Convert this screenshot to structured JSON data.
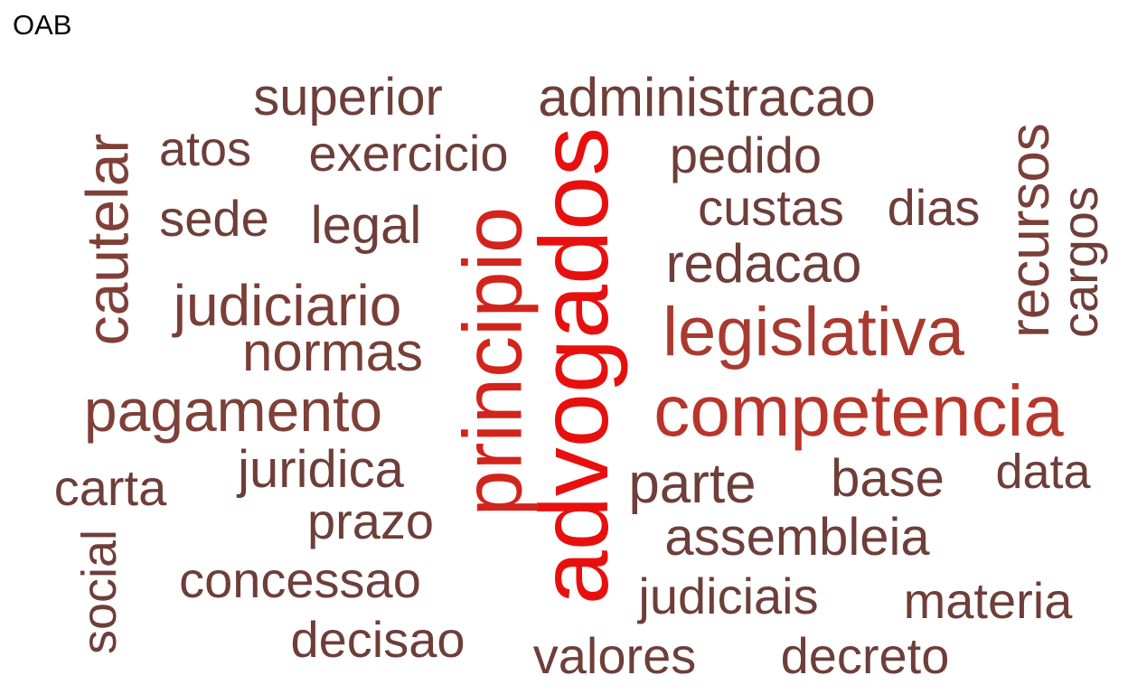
{
  "title": "OAB",
  "colors": {
    "strongest": "#e8100f",
    "strong": "#d2241c",
    "medium": "#b8352b",
    "soft": "#9c3d33",
    "base": "#6e3e39"
  },
  "words": [
    {
      "text": "advogados",
      "weight": 1.0,
      "color": "#e8100f",
      "vertical": true
    },
    {
      "text": "principio",
      "weight": 0.93,
      "color": "#d2241c",
      "vertical": true
    },
    {
      "text": "competencia",
      "weight": 0.88,
      "color": "#b8352b",
      "vertical": false
    },
    {
      "text": "legislativa",
      "weight": 0.8,
      "color": "#a83a2f",
      "vertical": false
    },
    {
      "text": "pagamento",
      "weight": 0.66,
      "color": "#7e4038",
      "vertical": false
    },
    {
      "text": "cautelar",
      "weight": 0.66,
      "color": "#7e4038",
      "vertical": true
    },
    {
      "text": "recursos",
      "weight": 0.62,
      "color": "#7a3f38",
      "vertical": true
    },
    {
      "text": "judiciario",
      "weight": 0.62,
      "color": "#7a3f38",
      "vertical": false
    },
    {
      "text": "normas",
      "weight": 0.6,
      "color": "#773f38",
      "vertical": false
    },
    {
      "text": "administracao",
      "weight": 0.6,
      "color": "#6e3e39",
      "vertical": false
    },
    {
      "text": "superior",
      "weight": 0.58,
      "color": "#6e3e39",
      "vertical": false
    },
    {
      "text": "juridica",
      "weight": 0.58,
      "color": "#6e3e39",
      "vertical": false
    },
    {
      "text": "parte",
      "weight": 0.58,
      "color": "#6e3e39",
      "vertical": false
    },
    {
      "text": "assembleia",
      "weight": 0.56,
      "color": "#6e3e39",
      "vertical": false
    },
    {
      "text": "redacao",
      "weight": 0.56,
      "color": "#6e3e39",
      "vertical": false
    },
    {
      "text": "legal",
      "weight": 0.56,
      "color": "#6e3e39",
      "vertical": false
    },
    {
      "text": "cargos",
      "weight": 0.54,
      "color": "#6e3e39",
      "vertical": true
    },
    {
      "text": "carta",
      "weight": 0.54,
      "color": "#6e3e39",
      "vertical": false
    },
    {
      "text": "exercicio",
      "weight": 0.52,
      "color": "#6e3e39",
      "vertical": false
    },
    {
      "text": "pedido",
      "weight": 0.52,
      "color": "#6e3e39",
      "vertical": false
    },
    {
      "text": "custas",
      "weight": 0.52,
      "color": "#6e3e39",
      "vertical": false
    },
    {
      "text": "dias",
      "weight": 0.52,
      "color": "#6e3e39",
      "vertical": false
    },
    {
      "text": "sede",
      "weight": 0.52,
      "color": "#6e3e39",
      "vertical": false
    },
    {
      "text": "atos",
      "weight": 0.5,
      "color": "#6e3e39",
      "vertical": false
    },
    {
      "text": "base",
      "weight": 0.52,
      "color": "#6e3e39",
      "vertical": false
    },
    {
      "text": "data",
      "weight": 0.5,
      "color": "#6e3e39",
      "vertical": false
    },
    {
      "text": "prazo",
      "weight": 0.52,
      "color": "#6e3e39",
      "vertical": false
    },
    {
      "text": "concessao",
      "weight": 0.52,
      "color": "#6e3e39",
      "vertical": false
    },
    {
      "text": "judiciais",
      "weight": 0.52,
      "color": "#6e3e39",
      "vertical": false
    },
    {
      "text": "materia",
      "weight": 0.52,
      "color": "#6e3e39",
      "vertical": false
    },
    {
      "text": "social",
      "weight": 0.52,
      "color": "#6e3e39",
      "vertical": true
    },
    {
      "text": "decisao",
      "weight": 0.52,
      "color": "#6e3e39",
      "vertical": false
    },
    {
      "text": "valores",
      "weight": 0.52,
      "color": "#6e3e39",
      "vertical": false
    },
    {
      "text": "decreto",
      "weight": 0.52,
      "color": "#6e3e39",
      "vertical": false
    }
  ]
}
